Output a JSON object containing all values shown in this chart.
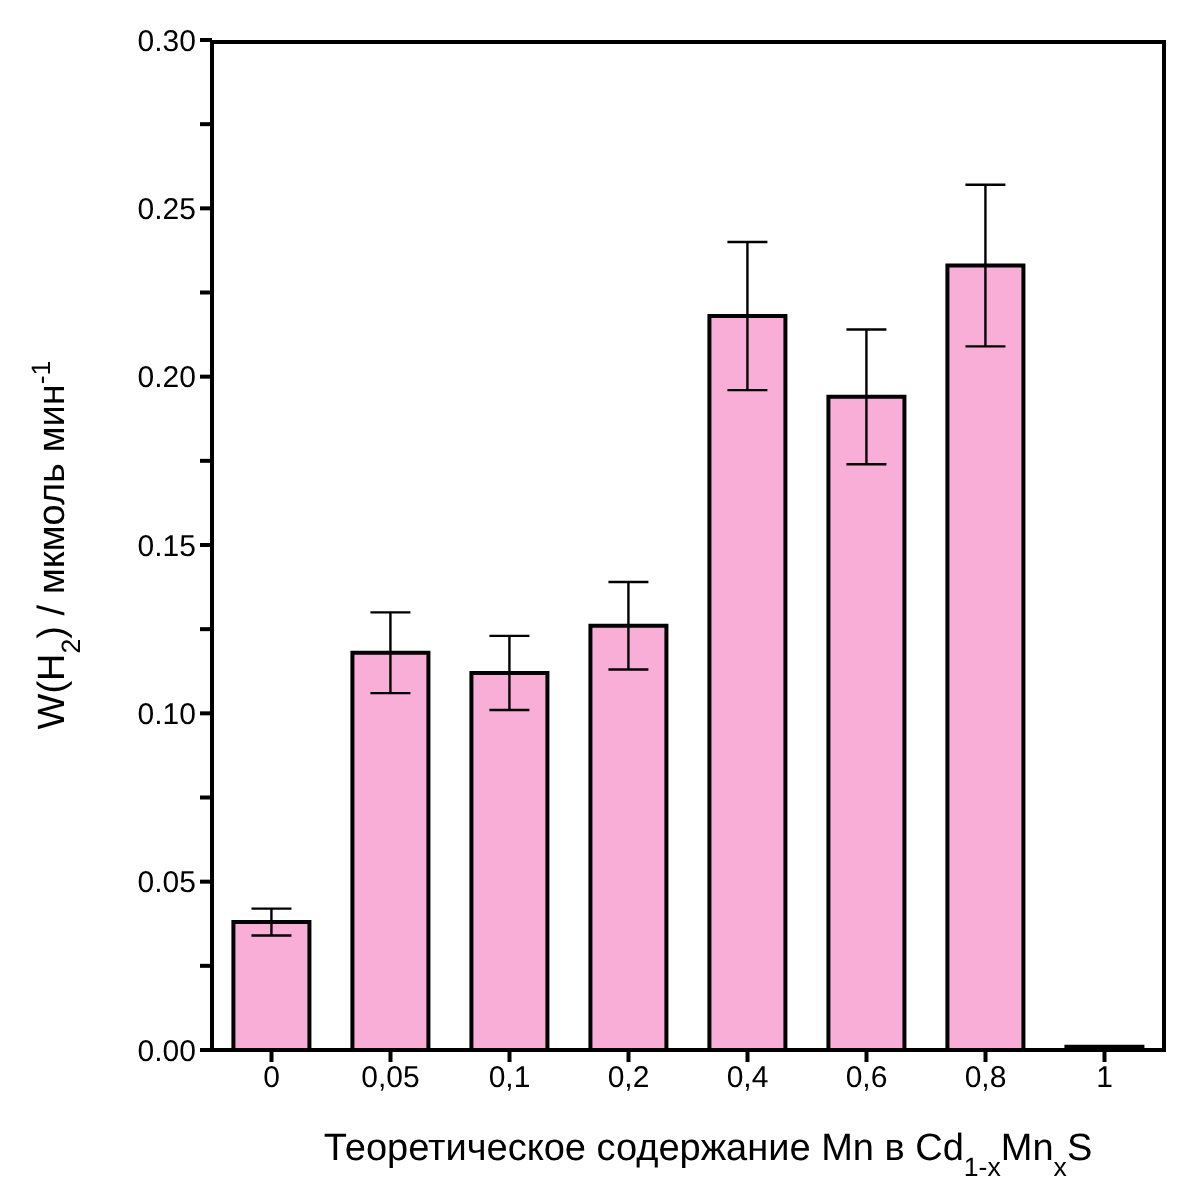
{
  "chart_data": {
    "type": "bar",
    "xlabel": "Теоретическое содержание Mn в Cd$_{1-x}$Mn$_{x}$S",
    "ylabel": "W(H$_{2}$) / мкмоль мин$^{-1}$",
    "categories": [
      "0",
      "0,05",
      "0,1",
      "0,2",
      "0,4",
      "0,6",
      "0,8",
      "1"
    ],
    "values": [
      0.038,
      0.118,
      0.112,
      0.126,
      0.218,
      0.194,
      0.233,
      0.001
    ],
    "errors": [
      0.004,
      0.012,
      0.011,
      0.013,
      0.022,
      0.02,
      0.024,
      null
    ],
    "color": "#f9aed8",
    "ylim": [
      0,
      0.3
    ],
    "yticks": [
      {
        "value": 0,
        "label": "0.00"
      },
      {
        "value": 0.025,
        "label": null
      },
      {
        "value": 0.05,
        "label": "0.05"
      },
      {
        "value": 0.075,
        "label": null
      },
      {
        "value": 0.1,
        "label": "0.10"
      },
      {
        "value": 0.125,
        "label": null
      },
      {
        "value": 0.15,
        "label": "0.15"
      },
      {
        "value": 0.175,
        "label": null
      },
      {
        "value": 0.2,
        "label": "0.20"
      },
      {
        "value": 0.225,
        "label": null
      },
      {
        "value": 0.25,
        "label": "0.25"
      },
      {
        "value": 0.275,
        "label": null
      },
      {
        "value": 0.3,
        "label": "0.30"
      }
    ],
    "grid": false
  }
}
